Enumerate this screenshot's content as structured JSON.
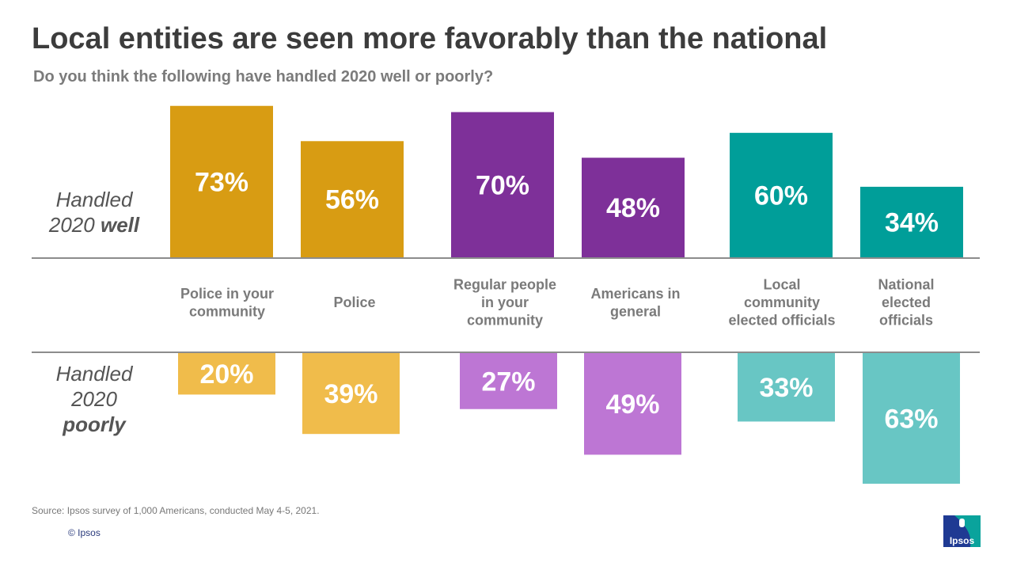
{
  "title": "Local entities are seen more favorably than the national",
  "subtitle": "Do you think the following have handled 2020 well or poorly?",
  "row_labels": {
    "well_line1": "Handled",
    "well_line2_prefix": "2020 ",
    "well_line2_bold": "well",
    "poorly_line1": "Handled",
    "poorly_line2": "2020",
    "poorly_line3": "poorly"
  },
  "source": "Source: Ipsos survey of 1,000 Americans, conducted May 4-5, 2021.",
  "copyright": "© Ipsos",
  "logo_text": "Ipsos",
  "colors": {
    "gold_dark": "#d89c13",
    "gold_light": "#f0bc4b",
    "purple_dark": "#7e3099",
    "purple_light": "#bd76d4",
    "teal_dark": "#009e99",
    "teal_light": "#68c6c4",
    "logo_blue": "#1f3a93",
    "logo_teal": "#0aa39c"
  },
  "chart_data": {
    "type": "bar",
    "title": "Local entities are seen more favorably than the national",
    "subtitle": "Do you think the following have handled 2020 well or poorly?",
    "categories": [
      [
        "Police in your",
        "community"
      ],
      [
        "Police"
      ],
      [
        "Regular people",
        "in your",
        "community"
      ],
      [
        "Americans in",
        "general"
      ],
      [
        "Local",
        "community",
        "elected officials"
      ],
      [
        "National",
        "elected",
        "officials"
      ]
    ],
    "series": [
      {
        "name": "Handled 2020 well",
        "values": [
          73,
          56,
          70,
          48,
          60,
          34
        ]
      },
      {
        "name": "Handled 2020 poorly",
        "values": [
          20,
          39,
          27,
          49,
          33,
          63
        ]
      }
    ],
    "value_suffix": "%",
    "ylim": [
      0,
      100
    ]
  }
}
